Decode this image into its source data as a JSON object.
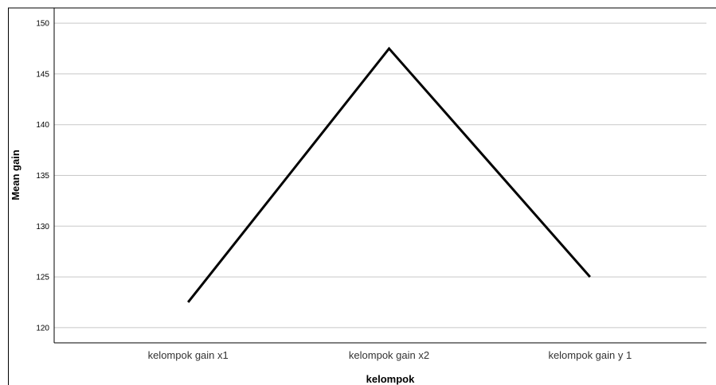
{
  "chart_data": {
    "type": "line",
    "title": "",
    "xlabel": "kelompok",
    "ylabel": "Mean gain",
    "categories": [
      "kelompok gain x1",
      "kelompok gain x2",
      "kelompok gain y 1"
    ],
    "series": [
      {
        "values": [
          122.5,
          147.5,
          125.0
        ]
      }
    ],
    "ylim": [
      118.5,
      151.5
    ],
    "yticks": [
      120,
      125,
      130,
      135,
      140,
      145,
      150
    ],
    "grid": "horizontal",
    "legend": "none",
    "colors": {
      "line": "#000000",
      "grid": "#c8c8c8",
      "frame": "#000000"
    }
  }
}
